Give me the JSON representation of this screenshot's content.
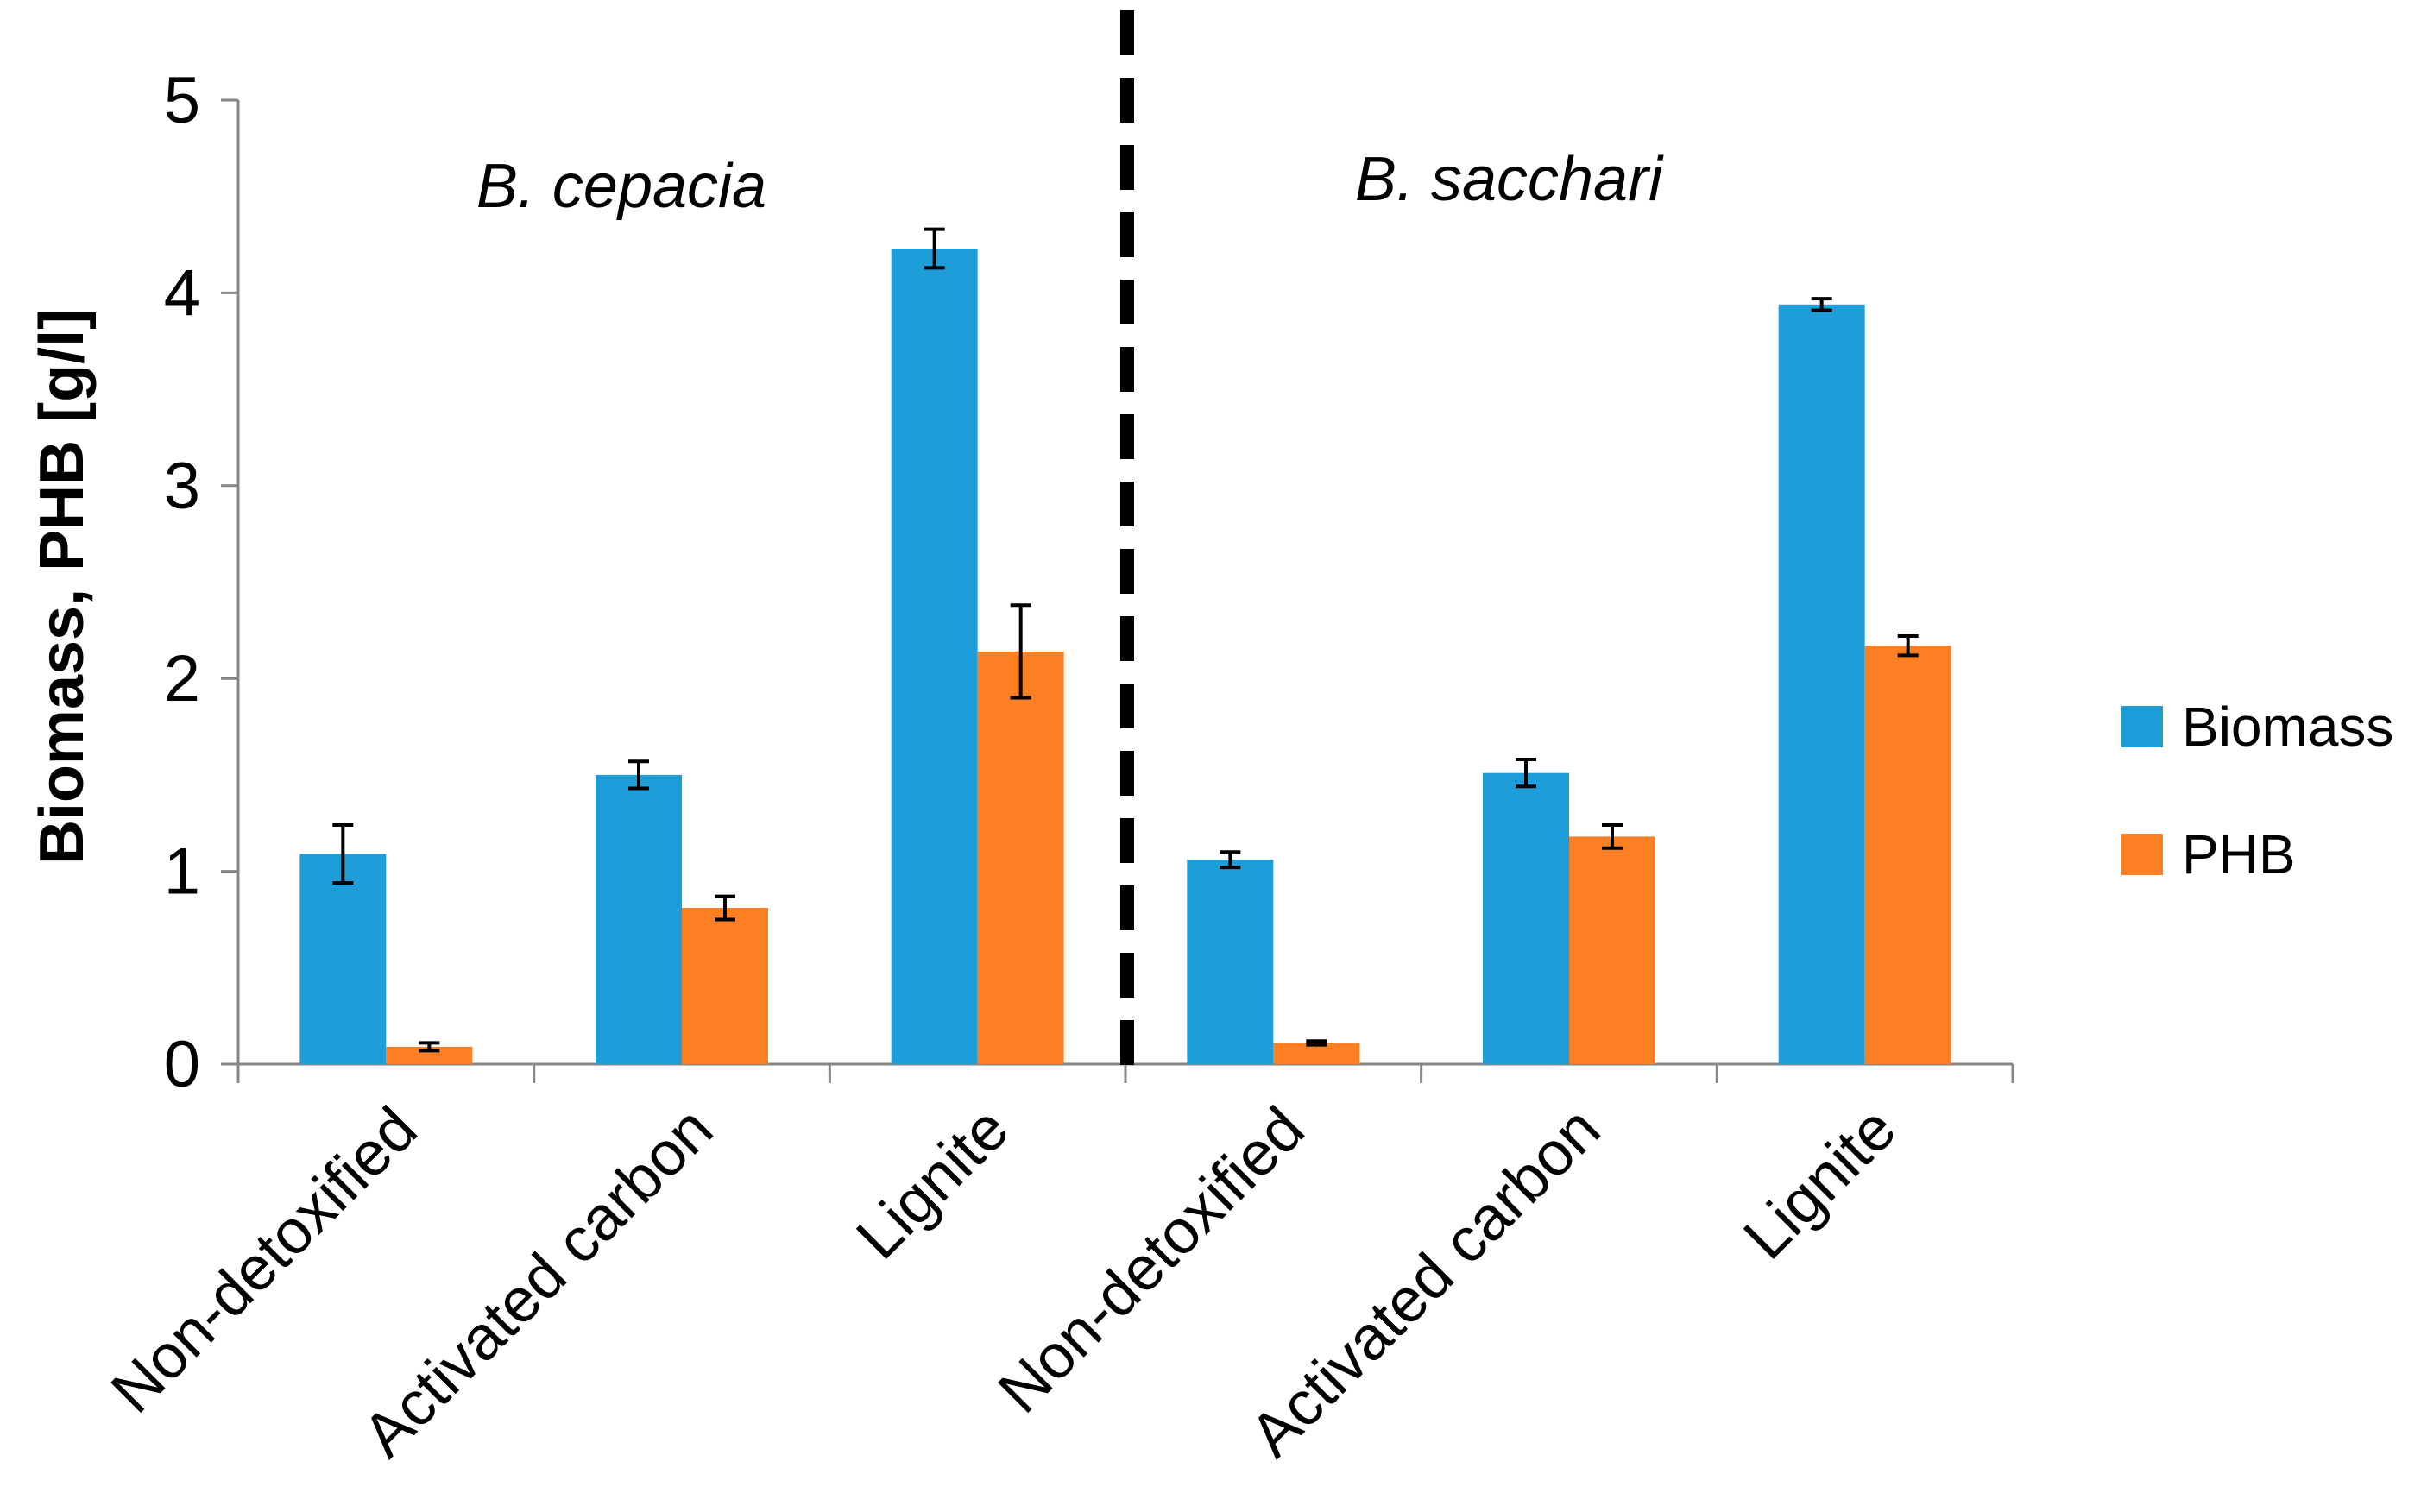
{
  "chart_data": {
    "type": "bar",
    "categories": [
      "Non-detoxified",
      "Activated carbon",
      "Lignite",
      "Non-detoxified",
      "Activated carbon",
      "Lignite"
    ],
    "series": [
      {
        "name": "Biomass",
        "color": "#1f9dd9",
        "values": [
          1.09,
          1.5,
          4.23,
          1.06,
          1.51,
          3.94
        ],
        "errors": [
          0.15,
          0.07,
          0.1,
          0.04,
          0.07,
          0.03
        ]
      },
      {
        "name": "PHB",
        "color": "#fd7f24",
        "values": [
          0.09,
          0.81,
          2.14,
          0.11,
          1.18,
          2.17
        ],
        "errors": [
          0.02,
          0.06,
          0.24,
          0.01,
          0.06,
          0.05
        ]
      }
    ],
    "groups": [
      {
        "label": "B. cepacia",
        "categories": [
          0,
          1,
          2
        ]
      },
      {
        "label": "B. sacchari",
        "categories": [
          3,
          4,
          5
        ]
      }
    ],
    "ylabel": "Biomass, PHB [g/l]",
    "xlabel": "",
    "ylim": [
      0,
      5
    ],
    "yticks": [
      0,
      1,
      2,
      3,
      4,
      5
    ],
    "legend_position": "right",
    "grid": false
  }
}
